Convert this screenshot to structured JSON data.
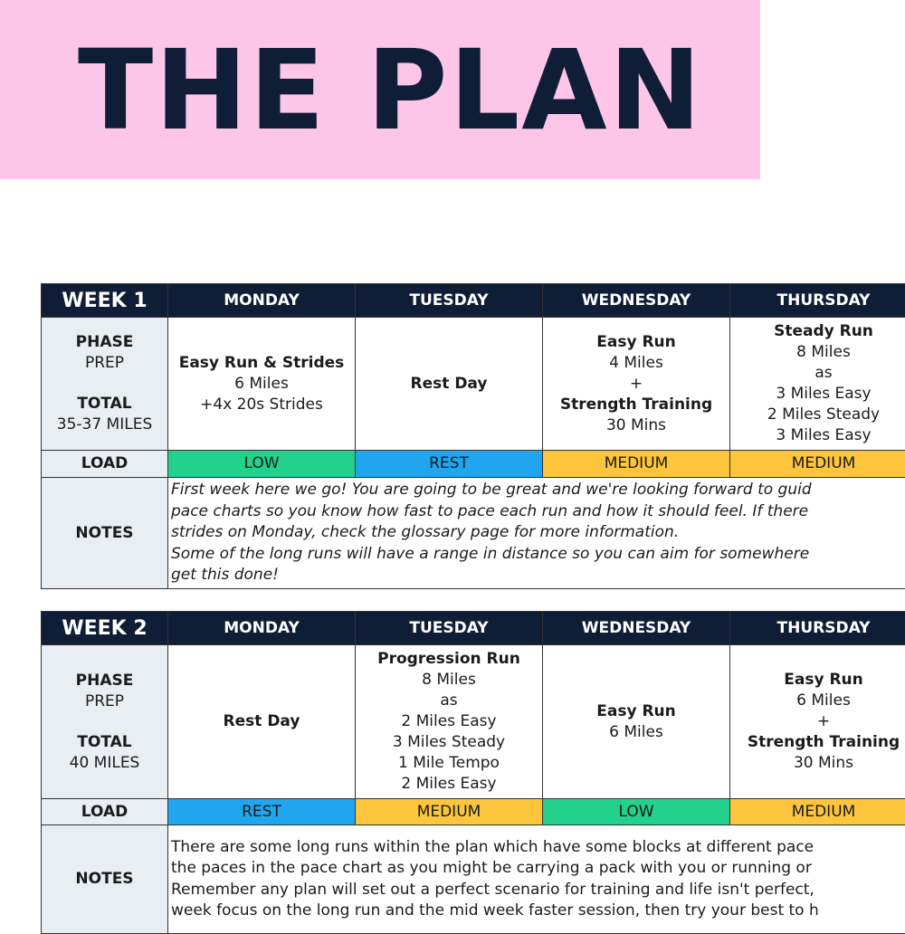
{
  "header": {
    "title": "THE PLAN"
  },
  "weeks": [
    {
      "week": "WEEK 1",
      "days": [
        "MONDAY",
        "TUESDAY",
        "WEDNESDAY",
        "THURSDAY"
      ],
      "summary": {
        "phase_label": "PHASE",
        "phase": "PREP",
        "total_label": "TOTAL",
        "total": "35-37 MILES"
      },
      "sessions": [
        [
          {
            "text": "Easy Run & Strides",
            "bold": true
          },
          {
            "text": "6 Miles",
            "bold": false
          },
          {
            "text": "+4x 20s Strides",
            "bold": false
          }
        ],
        [
          {
            "text": "Rest Day",
            "bold": true
          }
        ],
        [
          {
            "text": "Easy Run",
            "bold": true
          },
          {
            "text": "4 Miles",
            "bold": false
          },
          {
            "text": "+",
            "bold": false
          },
          {
            "text": "Strength Training",
            "bold": true
          },
          {
            "text": "30 Mins",
            "bold": false
          }
        ],
        [
          {
            "text": "Steady Run",
            "bold": true
          },
          {
            "text": "8 Miles",
            "bold": false
          },
          {
            "text": "as",
            "bold": false
          },
          {
            "text": "3 Miles Easy",
            "bold": false
          },
          {
            "text": "2 Miles Steady",
            "bold": false
          },
          {
            "text": "3 Miles Easy",
            "bold": false
          }
        ]
      ],
      "load_label": "LOAD",
      "loads": [
        {
          "text": "LOW",
          "color": "#22d18b"
        },
        {
          "text": "REST",
          "color": "#1fa6ee"
        },
        {
          "text": "MEDIUM",
          "color": "#fcc53c"
        },
        {
          "text": "MEDIUM",
          "color": "#fcc53c"
        }
      ],
      "notes_label": "NOTES",
      "notes": [
        "First week here we go! You are going to be great and we're looking forward to guid",
        "pace charts so you know how fast to pace each run and how it should feel. If there",
        "strides on Monday, check the glossary page for more information.",
        "Some of the long runs will have a range in distance so you can aim for somewhere",
        "get this done!"
      ]
    },
    {
      "week": "WEEK 2",
      "days": [
        "MONDAY",
        "TUESDAY",
        "WEDNESDAY",
        "THURSDAY"
      ],
      "summary": {
        "phase_label": "PHASE",
        "phase": "PREP",
        "total_label": "TOTAL",
        "total": "40 MILES"
      },
      "sessions": [
        [
          {
            "text": "Rest Day",
            "bold": true
          }
        ],
        [
          {
            "text": "Progression Run",
            "bold": true
          },
          {
            "text": "8 Miles",
            "bold": false
          },
          {
            "text": "as",
            "bold": false
          },
          {
            "text": "2 Miles Easy",
            "bold": false
          },
          {
            "text": "3 Miles Steady",
            "bold": false
          },
          {
            "text": "1 Mile Tempo",
            "bold": false
          },
          {
            "text": "2 Miles Easy",
            "bold": false
          }
        ],
        [
          {
            "text": "Easy Run",
            "bold": true
          },
          {
            "text": "6 Miles",
            "bold": false
          }
        ],
        [
          {
            "text": "Easy Run",
            "bold": true
          },
          {
            "text": "6 Miles",
            "bold": false
          },
          {
            "text": "+",
            "bold": false
          },
          {
            "text": "Strength Training",
            "bold": true
          },
          {
            "text": "30 Mins",
            "bold": false
          }
        ]
      ],
      "load_label": "LOAD",
      "loads": [
        {
          "text": "REST",
          "color": "#1fa6ee"
        },
        {
          "text": "MEDIUM",
          "color": "#fcc53c"
        },
        {
          "text": "LOW",
          "color": "#22d18b"
        },
        {
          "text": "MEDIUM",
          "color": "#fcc53c"
        }
      ],
      "notes_label": "NOTES",
      "notes": [
        "There are some long runs within the plan which have some blocks at different pace",
        "the paces in the pace chart as you might be carrying a pack with you or running or",
        "Remember any plan will set out a perfect scenario for training and life isn't perfect,",
        "week focus on the long run and the mid week faster session, then try your best to h"
      ]
    }
  ]
}
